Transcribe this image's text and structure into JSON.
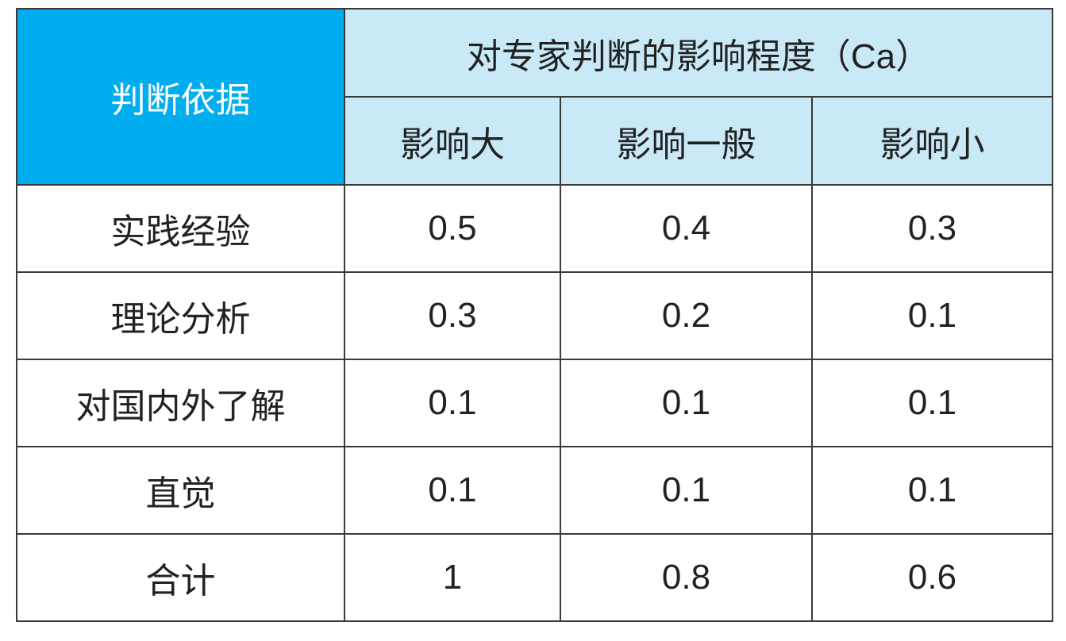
{
  "header": {
    "corner": "判断依据",
    "group": "对专家判断的影响程度（Ca）",
    "columns": [
      "影响大",
      "影响一般",
      "影响小"
    ]
  },
  "table": {
    "rows": [
      [
        "实践经验",
        0.5,
        0.4,
        0.3
      ],
      [
        "理论分析",
        0.3,
        0.2,
        0.1
      ],
      [
        "对国内外了解",
        0.1,
        0.1,
        0.1
      ],
      [
        "直觉",
        0.1,
        0.1,
        0.1
      ],
      [
        "合计",
        1,
        0.8,
        0.6
      ]
    ]
  }
}
